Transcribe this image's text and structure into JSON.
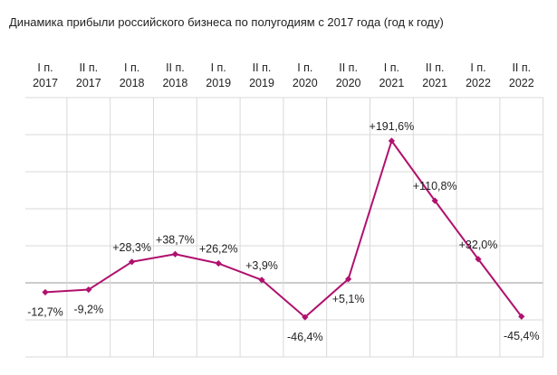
{
  "title": "Динамика прибыли российского бизнеса по полугодиям с 2017 года (год к году)",
  "chart_data": {
    "type": "line",
    "title": "Динамика прибыли российского бизнеса по полугодиям с 2017 года (год к году)",
    "categories": [
      [
        "I п.",
        "2017"
      ],
      [
        "II п.",
        "2017"
      ],
      [
        "I п.",
        "2018"
      ],
      [
        "II п.",
        "2018"
      ],
      [
        "I п.",
        "2019"
      ],
      [
        "II п.",
        "2019"
      ],
      [
        "I п.",
        "2020"
      ],
      [
        "II п.",
        "2020"
      ],
      [
        "I п.",
        "2021"
      ],
      [
        "II п.",
        "2021"
      ],
      [
        "I п.",
        "2022"
      ],
      [
        "II п.",
        "2022"
      ]
    ],
    "values": [
      -12.7,
      -9.2,
      28.3,
      38.7,
      26.2,
      3.9,
      -46.4,
      5.1,
      191.6,
      110.8,
      32.0,
      -45.4
    ],
    "labels": [
      "-12,7%",
      "-9,2%",
      "+28,3%",
      "+38,7%",
      "+26,2%",
      "+3,9%",
      "-46,4%",
      "+5,1%",
      "+191,6%",
      "+110,8%",
      "+32,0%",
      "-45,4%"
    ],
    "ylim": [
      -100,
      250
    ],
    "grid": true,
    "x_axis_position": "top",
    "line_color": "#b0116e",
    "grid_color": "#d9d9d9"
  }
}
